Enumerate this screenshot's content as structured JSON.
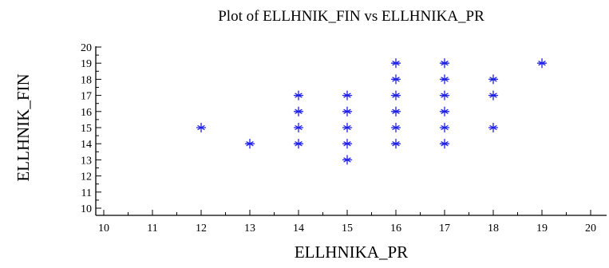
{
  "chart_data": {
    "type": "scatter",
    "title": "Plot of ELLHNIK_FIN vs ELLHNIKA_PR",
    "xlabel": "ELLHNIKA_PR",
    "ylabel": "ELLHNIK_FIN",
    "xlim": [
      10,
      20
    ],
    "ylim": [
      10,
      20
    ],
    "x_ticks": [
      "10",
      "11",
      "12",
      "13",
      "14",
      "15",
      "16",
      "17",
      "18",
      "19",
      "20"
    ],
    "y_ticks": [
      "10",
      "11",
      "12",
      "13",
      "14",
      "15",
      "16",
      "17",
      "18",
      "19",
      "20"
    ],
    "grid": false,
    "marker": "asterisk",
    "marker_color": "#1f1fe6",
    "series": [
      {
        "points": [
          {
            "x": 12,
            "y": 15
          },
          {
            "x": 13,
            "y": 14
          },
          {
            "x": 14,
            "y": 14
          },
          {
            "x": 14,
            "y": 15
          },
          {
            "x": 14,
            "y": 16
          },
          {
            "x": 14,
            "y": 17
          },
          {
            "x": 15,
            "y": 13
          },
          {
            "x": 15,
            "y": 14
          },
          {
            "x": 15,
            "y": 15
          },
          {
            "x": 15,
            "y": 16
          },
          {
            "x": 15,
            "y": 17
          },
          {
            "x": 16,
            "y": 14
          },
          {
            "x": 16,
            "y": 15
          },
          {
            "x": 16,
            "y": 16
          },
          {
            "x": 16,
            "y": 17
          },
          {
            "x": 16,
            "y": 18
          },
          {
            "x": 16,
            "y": 19
          },
          {
            "x": 17,
            "y": 14
          },
          {
            "x": 17,
            "y": 15
          },
          {
            "x": 17,
            "y": 16
          },
          {
            "x": 17,
            "y": 17
          },
          {
            "x": 17,
            "y": 18
          },
          {
            "x": 17,
            "y": 19
          },
          {
            "x": 18,
            "y": 15
          },
          {
            "x": 18,
            "y": 17
          },
          {
            "x": 18,
            "y": 18
          },
          {
            "x": 19,
            "y": 19
          }
        ]
      }
    ]
  }
}
